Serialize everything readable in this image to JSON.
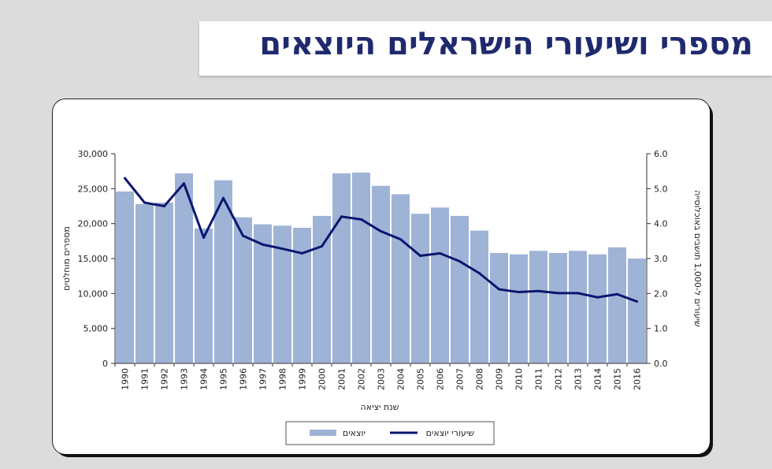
{
  "title": "מספרי ושיעורי הישראלים היוצאים",
  "chart_data": {
    "type": "bar",
    "title": "מספרי ושיעורי הישראלים היוצאים",
    "xlabel": "שנת יציאה",
    "ylabel": "מספרים מוחלטים",
    "y2label": "שיעורים ל-1,000 תושבים באוכלוסייה",
    "ylim": [
      0,
      30000
    ],
    "y2lim": [
      0,
      6
    ],
    "yticks": [
      "30,000",
      "25,000",
      "20,000",
      "15,000",
      "10,000",
      "5,000",
      "0"
    ],
    "y2ticks": [
      "6.0",
      "5.0",
      "4.0",
      "3.0",
      "2.0",
      "1.0",
      "0.0"
    ],
    "legend_position": "bottom",
    "categories": [
      "1990",
      "1991",
      "1992",
      "1993",
      "1994",
      "1995",
      "1996",
      "1997",
      "1998",
      "1999",
      "2000",
      "2001",
      "2002",
      "2003",
      "2004",
      "2005",
      "2006",
      "2007",
      "2008",
      "2009",
      "2010",
      "2011",
      "2012",
      "2013",
      "2014",
      "2015",
      "2016"
    ],
    "series": [
      {
        "name": "יוצאים",
        "type": "bar",
        "axis": "left",
        "color": "#9fb3d6",
        "values": [
          24600,
          22800,
          23000,
          27200,
          19300,
          26200,
          20900,
          19900,
          19700,
          19400,
          21100,
          27200,
          27300,
          25400,
          24200,
          21400,
          22300,
          21100,
          19000,
          15800,
          15600,
          16100,
          15800,
          16100,
          15600,
          16600,
          15000
        ]
      },
      {
        "name": "שיעורי יוצאים",
        "type": "line",
        "axis": "right",
        "color": "#0b1670",
        "values": [
          5.3,
          4.6,
          4.5,
          5.15,
          3.6,
          4.73,
          3.65,
          3.4,
          3.28,
          3.15,
          3.35,
          4.2,
          4.12,
          3.78,
          3.55,
          3.08,
          3.15,
          2.92,
          2.58,
          2.12,
          2.04,
          2.07,
          2.01,
          2.01,
          1.89,
          1.98,
          1.77
        ]
      }
    ]
  }
}
